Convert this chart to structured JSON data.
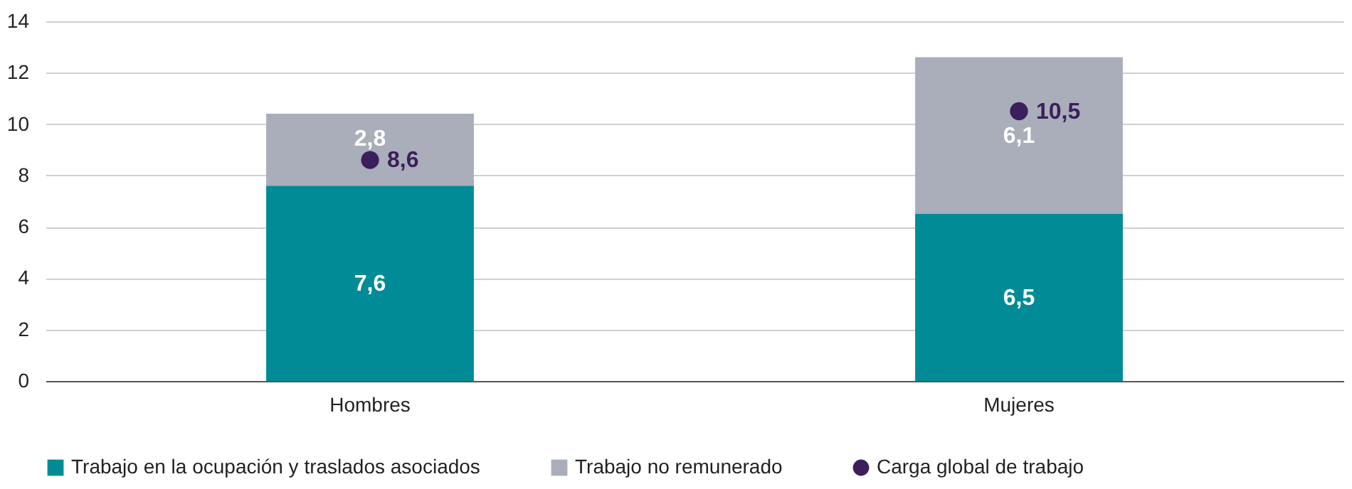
{
  "chart_data": {
    "type": "bar",
    "stacked": true,
    "categories": [
      "Hombres",
      "Mujeres"
    ],
    "series": [
      {
        "name": "Trabajo en la ocupación y traslados asociados",
        "color": "#008b96",
        "values": [
          7.6,
          6.5
        ],
        "value_labels": [
          "7,6",
          "6,5"
        ]
      },
      {
        "name": "Trabajo no remunerado",
        "color": "#a9aeba",
        "values": [
          2.8,
          6.1
        ],
        "value_labels": [
          "2,8",
          "6,1"
        ]
      },
      {
        "name": "Carga global de trabajo",
        "type": "scatter",
        "marker": "circle",
        "color": "#3b1e5c",
        "x": [
          "Hombres",
          "Mujeres"
        ],
        "values": [
          8.6,
          10.5
        ],
        "value_labels": [
          "8,6",
          "10,5"
        ]
      }
    ],
    "ylim": [
      0,
      14
    ],
    "yticks": [
      0,
      2,
      4,
      6,
      8,
      10,
      12,
      14
    ],
    "grid": "y",
    "legend": "bottom"
  }
}
